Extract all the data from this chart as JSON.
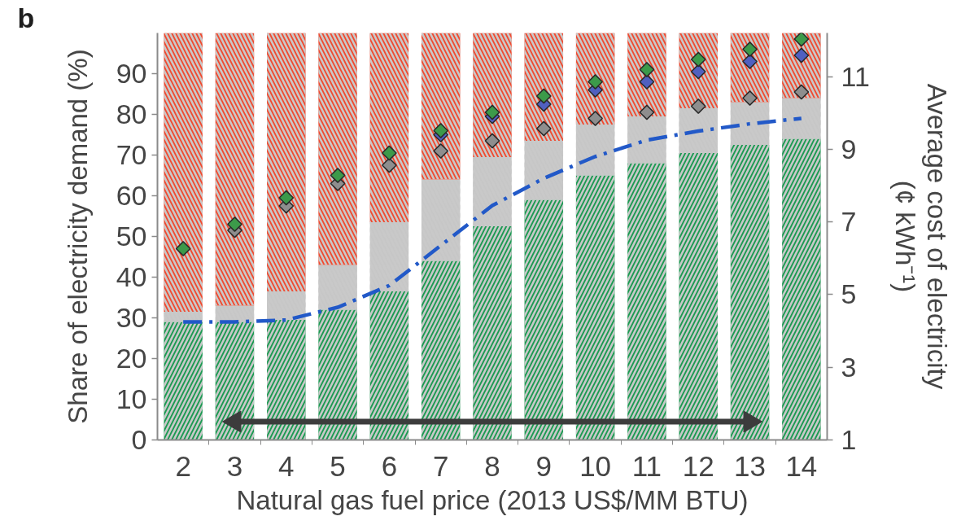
{
  "chart_data": {
    "type": "bar",
    "title": "b",
    "xlabel": "Natural gas fuel price (2013 US$/MM BTU)",
    "ylabel": "Share of electricity demand (%)",
    "y2label": "Average cost of electricity\n(¢ kWh⁻¹)",
    "categories": [
      "2",
      "3",
      "4",
      "5",
      "6",
      "7",
      "8",
      "9",
      "10",
      "11",
      "12",
      "13",
      "14"
    ],
    "stacked": true,
    "ylim": [
      0,
      100
    ],
    "yticks": [
      0,
      10,
      20,
      30,
      40,
      50,
      60,
      70,
      80,
      90
    ],
    "y2lim": [
      1,
      12.2
    ],
    "y2ticks": [
      1,
      3,
      5,
      7,
      9,
      11
    ],
    "series": [
      {
        "color": "#1c9a52",
        "values": [
          29,
          29,
          29.5,
          32,
          36.5,
          44,
          52.5,
          59,
          65,
          68,
          70.5,
          72.5,
          74
        ]
      },
      {
        "color": "#c6c6c6",
        "values": [
          2.5,
          4,
          7,
          11,
          17,
          20,
          17,
          14.5,
          12.5,
          11.5,
          11,
          10.5,
          10
        ]
      },
      {
        "color": "#f04a30",
        "values": [
          68.5,
          67,
          63.5,
          57,
          46.5,
          36,
          30.5,
          26.5,
          22.5,
          20.5,
          18.5,
          17,
          16
        ]
      },
      {
        "type": "line",
        "axis": "y2",
        "color": "#2259c8",
        "line_style": "dashed",
        "values": [
          4.25,
          4.25,
          4.3,
          4.65,
          5.25,
          6.35,
          7.45,
          8.2,
          8.8,
          9.25,
          9.5,
          9.7,
          9.85
        ]
      },
      {
        "type": "line",
        "color": "#3c3c3c",
        "marker": "triangle",
        "x": [
          "3",
          "13"
        ],
        "values": [
          4.5,
          4.5
        ]
      },
      {
        "type": "scatter",
        "marker": "diamond",
        "color": "#8e8e8e",
        "values": [
          null,
          51.5,
          57.5,
          63,
          67.5,
          71,
          73.5,
          76.5,
          79,
          80.5,
          82,
          84,
          85.5
        ]
      },
      {
        "type": "scatter",
        "marker": "diamond",
        "color": "#5060c0",
        "values": [
          null,
          null,
          null,
          null,
          null,
          75,
          79.5,
          82.5,
          86,
          88,
          90.5,
          93,
          94.5
        ]
      },
      {
        "type": "scatter",
        "marker": "diamond",
        "color": "#3c9a4a",
        "values": [
          47,
          53,
          59.5,
          65,
          70.5,
          76,
          80.5,
          84.5,
          88,
          91,
          93.5,
          96,
          98.5
        ]
      }
    ]
  }
}
